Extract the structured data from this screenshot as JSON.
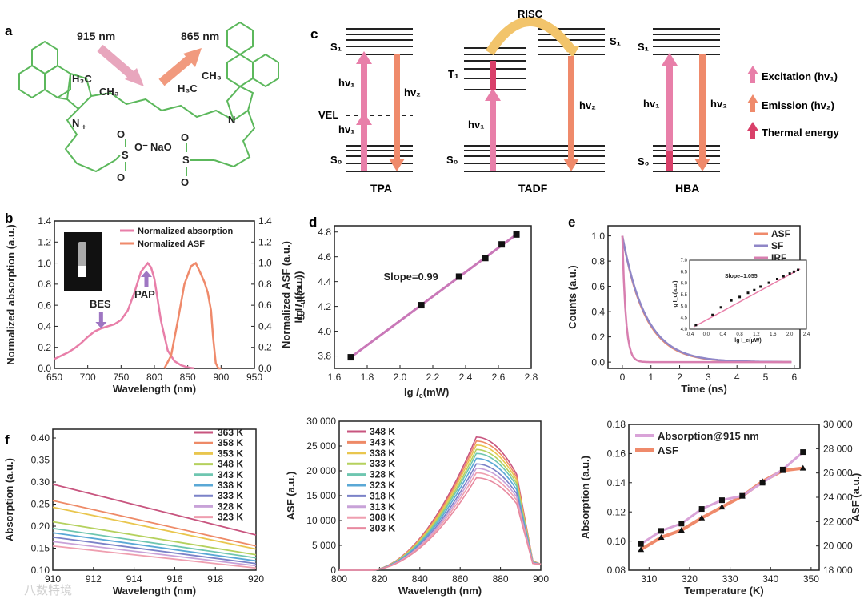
{
  "panel_labels": {
    "a": "a",
    "b": "b",
    "c": "c",
    "d": "d",
    "e": "e",
    "f": "f"
  },
  "colors": {
    "pink": "#e87fa9",
    "orange": "#ef8a6b",
    "purple": "#9e76c2",
    "green": "#5cb85c",
    "dark": "#222222",
    "yellow": "#f2c46b",
    "thermal": "#d9406a"
  },
  "panel_a": {
    "arrow_in": "915 nm",
    "arrow_out": "865 nm",
    "methyl_left_1": "H₃C",
    "methyl_left_2": "CH₃",
    "methyl_right_1": "H₃C",
    "methyl_right_2": "CH₃",
    "n_left": "N",
    "n_plus": "+",
    "n_right": "N",
    "s_left": "S",
    "s_right": "S",
    "o_minus": "O⁻",
    "na": "NaO",
    "o_labels": [
      "O",
      "O",
      "O",
      "O"
    ]
  },
  "panel_c": {
    "risc": "RISC",
    "s1_tpa": "S₁",
    "vel": "VEL",
    "s0_tpa": "S₀",
    "hv1_top": "hv₁",
    "hv1_bottom": "hv₁",
    "hv2_tpa": "hv₂",
    "t1": "T₁",
    "s1_tadf": "S₁",
    "s0_tadf": "S₀",
    "hv1_tadf": "hv₁",
    "hv2_tadf": "hv₂",
    "s1_hba": "S₁",
    "s0_hba": "S₀",
    "hv1_hba": "hv₁",
    "hv2_hba": "hv₂",
    "captions": [
      "TPA",
      "TADF",
      "HBA"
    ],
    "legend": [
      {
        "label": "Excitation (hv₁)",
        "color": "#e87fa9"
      },
      {
        "label": "Emission (hv₂)",
        "color": "#ef8a6b"
      },
      {
        "label": "Thermal energy",
        "color": "#d9406a"
      }
    ]
  },
  "chart_data": [
    {
      "id": "b",
      "type": "line",
      "title": "",
      "xlabel": "Wavelength (nm)",
      "ylabel": "Normalized absorption (a.u.)",
      "y2label": "Normalized ASF (a.u.)",
      "xlim": [
        650,
        950
      ],
      "ylim": [
        0,
        1.4
      ],
      "y2lim": [
        0,
        1.4
      ],
      "xticks": [
        "650",
        "700",
        "750",
        "800",
        "850",
        "900",
        "950"
      ],
      "yticks": [
        "0.0",
        "0.2",
        "0.4",
        "0.6",
        "0.8",
        "1.0",
        "1.2",
        "1.4"
      ],
      "annotations": [
        "BES",
        "PAP"
      ],
      "series": [
        {
          "name": "Normalized absorption",
          "color": "#e87fa9",
          "x": [
            650,
            660,
            670,
            680,
            690,
            700,
            710,
            720,
            730,
            740,
            750,
            760,
            770,
            780,
            790,
            795,
            800,
            810,
            820,
            830,
            840,
            850,
            860
          ],
          "y": [
            0.09,
            0.12,
            0.15,
            0.19,
            0.24,
            0.3,
            0.35,
            0.38,
            0.4,
            0.42,
            0.46,
            0.55,
            0.72,
            0.92,
            1.0,
            0.96,
            0.85,
            0.45,
            0.17,
            0.07,
            0.03,
            0.01,
            0.0
          ]
        },
        {
          "name": "Normalized ASF",
          "color": "#ef8a6b",
          "x": [
            815,
            825,
            835,
            845,
            855,
            862,
            868,
            875,
            880,
            885,
            888,
            892,
            896,
            900
          ],
          "y": [
            0.0,
            0.12,
            0.45,
            0.8,
            0.97,
            1.0,
            0.92,
            0.82,
            0.72,
            0.55,
            0.3,
            0.05,
            0.0,
            0.0
          ]
        }
      ]
    },
    {
      "id": "d",
      "type": "scatter",
      "xlabel": "lg  I_e(mW)",
      "ylabel": "lg  I_u(a.u.)",
      "xlabel_main": "lg",
      "xlabel_sym": "I",
      "xlabel_sub": "e",
      "xlabel_unit": "(mW)",
      "ylabel_main": "lg",
      "ylabel_sym": "I",
      "ylabel_sub": "u",
      "ylabel_unit": "(a.u.)",
      "xlim": [
        1.6,
        2.8
      ],
      "ylim": [
        3.7,
        4.85
      ],
      "xticks": [
        "1.6",
        "1.8",
        "2.0",
        "2.2",
        "2.4",
        "2.6",
        "2.8"
      ],
      "yticks": [
        "3.8",
        "4.0",
        "4.2",
        "4.4",
        "4.6",
        "4.8"
      ],
      "annotation": "Slope=0.99",
      "x": [
        1.7,
        2.13,
        2.36,
        2.52,
        2.62,
        2.71
      ],
      "y": [
        3.79,
        4.21,
        4.44,
        4.59,
        4.7,
        4.78
      ],
      "fit": [
        [
          1.7,
          3.79
        ],
        [
          2.72,
          4.79
        ]
      ]
    },
    {
      "id": "e",
      "type": "line",
      "xlabel": "Time (ns)",
      "ylabel": "Counts (a.u.)",
      "xlim": [
        -0.5,
        6.2
      ],
      "ylim": [
        -0.05,
        1.08
      ],
      "xticks": [
        "0",
        "1",
        "2",
        "3",
        "4",
        "5",
        "6"
      ],
      "yticks": [
        "0.0",
        "0.2",
        "0.4",
        "0.6",
        "0.8",
        "1.0"
      ],
      "series": [
        {
          "name": "ASF",
          "color": "#ef8a6b",
          "tau": 0.8
        },
        {
          "name": "SF",
          "color": "#8f86c7",
          "tau": 0.82
        },
        {
          "name": "IRF",
          "color": "#d87fb0",
          "tau": 0.12
        }
      ],
      "inset": {
        "xlabel": "lg  I_e(μW)",
        "ylabel": "lg  I_u(a.u.)",
        "xticks": [
          "-0.4",
          "0.0",
          "0.4",
          "0.8",
          "1.2",
          "1.6",
          "2.0",
          "2.4"
        ],
        "yticks": [
          "4.0",
          "4.5",
          "5.0",
          "5.5",
          "6.0",
          "6.5",
          "7.0"
        ],
        "annotation": "Slope=1.055",
        "xlim": [
          -0.4,
          2.4
        ],
        "ylim": [
          4.0,
          7.0
        ],
        "x": [
          -0.25,
          0.15,
          0.35,
          0.6,
          0.8,
          1.0,
          1.15,
          1.3,
          1.5,
          1.7,
          1.85,
          2.0,
          2.1,
          2.2
        ],
        "y": [
          4.18,
          4.62,
          4.95,
          5.25,
          5.4,
          5.58,
          5.7,
          5.85,
          6.02,
          6.18,
          6.3,
          6.42,
          6.5,
          6.58
        ]
      }
    },
    {
      "id": "f1",
      "type": "line",
      "xlabel": "Wavelength (nm)",
      "ylabel": "Absorption (a.u.)",
      "xlim": [
        910,
        920
      ],
      "ylim": [
        0.1,
        0.42
      ],
      "xticks": [
        "910",
        "912",
        "914",
        "916",
        "918",
        "920"
      ],
      "yticks": [
        "0.10",
        "0.15",
        "0.20",
        "0.25",
        "0.30",
        "0.35",
        "0.40"
      ],
      "series": [
        {
          "name": "363 K",
          "color": "#c8557f",
          "start": 0.295,
          "end": 0.18
        },
        {
          "name": "358 K",
          "color": "#ee8a67",
          "start": 0.258,
          "end": 0.155
        },
        {
          "name": "353 K",
          "color": "#e9c64e",
          "start": 0.243,
          "end": 0.148
        },
        {
          "name": "348 K",
          "color": "#b5d15e",
          "start": 0.21,
          "end": 0.135
        },
        {
          "name": "343 K",
          "color": "#6ec6b0",
          "start": 0.195,
          "end": 0.128
        },
        {
          "name": "338 K",
          "color": "#5aa8d6",
          "start": 0.185,
          "end": 0.121
        },
        {
          "name": "333 K",
          "color": "#7b82c8",
          "start": 0.175,
          "end": 0.115
        },
        {
          "name": "328 K",
          "color": "#c8a2d8",
          "start": 0.165,
          "end": 0.11
        },
        {
          "name": "323 K",
          "color": "#ef9fb0",
          "start": 0.155,
          "end": 0.105
        }
      ]
    },
    {
      "id": "f2",
      "type": "line",
      "xlabel": "Wavelength (nm)",
      "ylabel": "ASF (a.u.)",
      "xlim": [
        800,
        900
      ],
      "ylim": [
        0,
        30000
      ],
      "xticks": [
        "800",
        "820",
        "840",
        "860",
        "880",
        "900"
      ],
      "yticks": [
        "0",
        "5 000",
        "10 000",
        "15 000",
        "20 000",
        "25 000",
        "30 000"
      ],
      "series": [
        {
          "name": "348 K",
          "color": "#c8557f",
          "peak": 26800
        },
        {
          "name": "343 K",
          "color": "#ee8a67",
          "peak": 26000
        },
        {
          "name": "338 K",
          "color": "#e9c64e",
          "peak": 25200
        },
        {
          "name": "333 K",
          "color": "#b5d15e",
          "peak": 24300
        },
        {
          "name": "328 K",
          "color": "#6ec6b0",
          "peak": 23500
        },
        {
          "name": "323 K",
          "color": "#5aa8d6",
          "peak": 22500
        },
        {
          "name": "318 K",
          "color": "#7b82c8",
          "peak": 21400
        },
        {
          "name": "313 K",
          "color": "#c8a2d8",
          "peak": 20500
        },
        {
          "name": "308 K",
          "color": "#ef9fb0",
          "peak": 19600
        },
        {
          "name": "303 K",
          "color": "#e88aa0",
          "peak": 18600
        }
      ]
    },
    {
      "id": "f3",
      "type": "scatter",
      "xlabel": "Temperature (K)",
      "ylabel": "Absorption (a.u.)",
      "y2label": "ASF (a.u.)",
      "xlim": [
        305,
        352
      ],
      "ylim": [
        0.08,
        0.18
      ],
      "y2lim": [
        18000,
        30000
      ],
      "xticks": [
        "310",
        "320",
        "330",
        "340",
        "350"
      ],
      "yticks": [
        "0.08",
        "0.10",
        "0.12",
        "0.14",
        "0.16",
        "0.18"
      ],
      "y2ticks": [
        "18 000",
        "20 000",
        "22 000",
        "24 000",
        "26 000",
        "28 000",
        "30 000"
      ],
      "series": [
        {
          "name": "Absorption@915 nm",
          "color": "#d9a3d8",
          "axis": "left",
          "x": [
            308,
            313,
            318,
            323,
            328,
            333,
            338,
            343,
            348
          ],
          "y": [
            0.098,
            0.107,
            0.112,
            0.122,
            0.128,
            0.131,
            0.14,
            0.149,
            0.161
          ]
        },
        {
          "name": "ASF",
          "color": "#ef8a6b",
          "axis": "right",
          "x": [
            308,
            313,
            318,
            323,
            328,
            333,
            338,
            343,
            348
          ],
          "y": [
            19700,
            20700,
            21300,
            22300,
            23200,
            24100,
            25300,
            26200,
            26400
          ]
        }
      ]
    }
  ],
  "watermark": "八数特境"
}
